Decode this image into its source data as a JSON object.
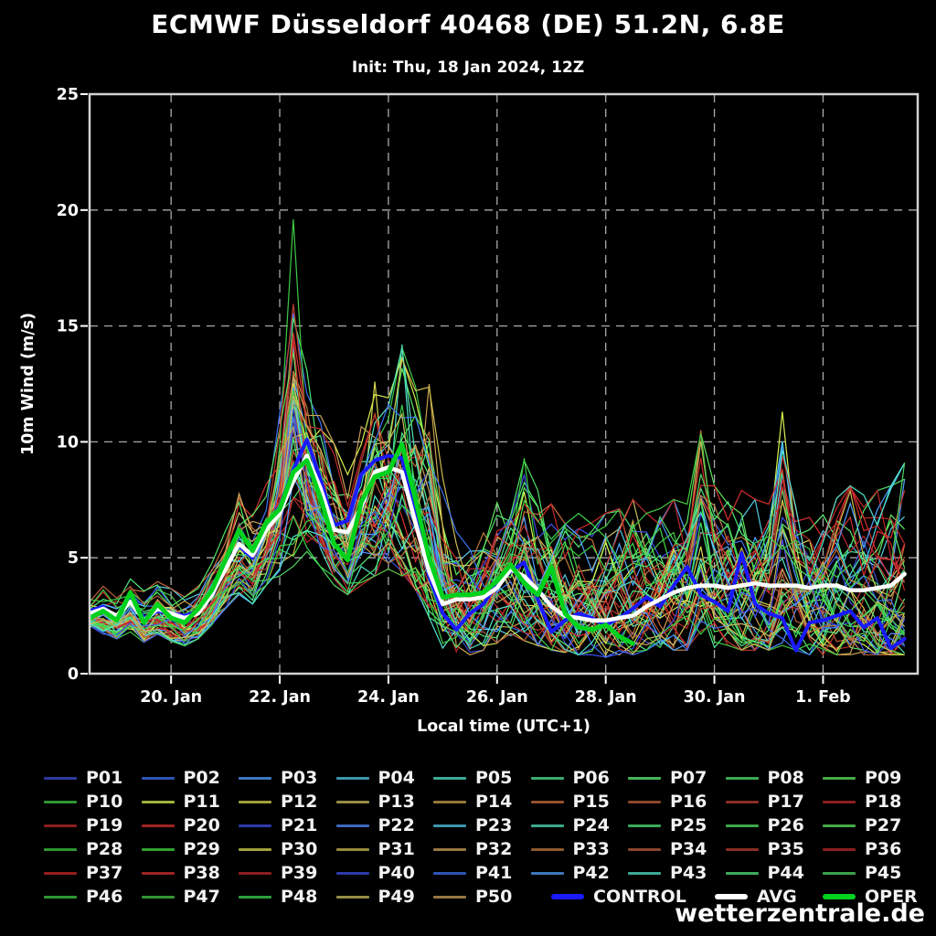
{
  "title": "ECMWF Düsseldorf 40468 (DE) 51.2N, 6.8E",
  "subtitle": "Init: Thu, 18 Jan 2024, 12Z",
  "watermark": "wetterzentrale.de",
  "legend": {
    "members": [
      "P01",
      "P02",
      "P03",
      "P04",
      "P05",
      "P06",
      "P07",
      "P08",
      "P09",
      "P10",
      "P11",
      "P12",
      "P13",
      "P14",
      "P15",
      "P16",
      "P17",
      "P18",
      "P19",
      "P20",
      "P21",
      "P22",
      "P23",
      "P24",
      "P25",
      "P26",
      "P27",
      "P28",
      "P29",
      "P30",
      "P31",
      "P32",
      "P33",
      "P34",
      "P35",
      "P36",
      "P37",
      "P38",
      "P39",
      "P40",
      "P41",
      "P42",
      "P43",
      "P44",
      "P45",
      "P46",
      "P47",
      "P48",
      "P49",
      "P50"
    ],
    "control_label": "CONTROL",
    "avg_label": "AVG",
    "oper_label": "OPER"
  },
  "chart_data": {
    "type": "line",
    "title": "ECMWF Düsseldorf 40468 (DE) 51.2N, 6.8E",
    "xlabel": "Local time (UTC+1)",
    "ylabel": "10m Wind (m/s)",
    "ylim": [
      0,
      25
    ],
    "yticks": [
      0,
      5,
      10,
      15,
      20,
      25
    ],
    "grid": true,
    "x_start": "18 Jan 2024 12:00 UTC+1",
    "time_step_days": 0.25,
    "x_range_days": [
      0,
      15
    ],
    "xticks": {
      "days": [
        1.5,
        3.5,
        5.5,
        7.5,
        9.5,
        11.5,
        13.5
      ],
      "labels": [
        "20. Jan",
        "22. Jan",
        "24. Jan",
        "26. Jan",
        "28. Jan",
        "30. Jan",
        "1. Feb"
      ]
    },
    "series": [
      {
        "name": "CONTROL",
        "color": "#1a1aff",
        "width": 4,
        "values": [
          2.7,
          2.9,
          2.4,
          3.2,
          2.4,
          2.7,
          2.6,
          2.5,
          2.7,
          3.5,
          4.7,
          5.5,
          5.0,
          6.4,
          7.2,
          8.8,
          10.1,
          8.4,
          6.4,
          6.6,
          8.6,
          9.2,
          9.4,
          9.3,
          6.8,
          4.2,
          2.6,
          1.9,
          2.6,
          3.0,
          3.9,
          4.4,
          4.8,
          3.2,
          1.8,
          2.3,
          2.6,
          2.4,
          2.1,
          2.4,
          2.8,
          3.3,
          2.9,
          3.8,
          4.6,
          3.4,
          3.1,
          2.7,
          5.2,
          3.0,
          2.6,
          2.4,
          1.0,
          2.2,
          2.3,
          2.5,
          2.7,
          2.0,
          2.4,
          1.1,
          1.5
        ]
      },
      {
        "name": "AVG",
        "color": "#ffffff",
        "width": 4.5,
        "values": [
          2.6,
          2.8,
          2.5,
          3.1,
          2.3,
          2.8,
          2.6,
          2.4,
          2.6,
          3.4,
          4.5,
          5.6,
          5.1,
          6.2,
          6.9,
          8.3,
          9.4,
          8.0,
          6.2,
          6.1,
          7.2,
          8.7,
          8.9,
          8.7,
          6.5,
          4.4,
          3.0,
          3.2,
          3.2,
          3.3,
          3.7,
          4.5,
          4.2,
          3.6,
          2.9,
          2.5,
          2.4,
          2.3,
          2.3,
          2.4,
          2.5,
          2.9,
          3.2,
          3.5,
          3.7,
          3.8,
          3.8,
          3.7,
          3.8,
          3.9,
          3.8,
          3.8,
          3.8,
          3.7,
          3.8,
          3.8,
          3.6,
          3.6,
          3.7,
          3.8,
          4.3
        ]
      },
      {
        "name": "OPER",
        "color": "#00d21e",
        "width": 5,
        "values": [
          2.4,
          2.7,
          2.3,
          3.5,
          2.2,
          3.0,
          2.4,
          2.2,
          2.8,
          3.6,
          4.9,
          6.2,
          5.3,
          6.5,
          7.1,
          8.7,
          9.2,
          7.6,
          5.6,
          4.9,
          7.4,
          8.5,
          8.7,
          9.9,
          7.5,
          5.0,
          3.3,
          3.4,
          3.4,
          3.5,
          4.0,
          4.7,
          3.9,
          3.4,
          4.6,
          2.6,
          2.0,
          1.9,
          2.1,
          1.6,
          1.3
        ]
      }
    ],
    "ensemble": {
      "count": 50,
      "seed": 42,
      "colors": [
        "#2d3a9e",
        "#2d55b4",
        "#3c78be",
        "#3c96aa",
        "#3caa96",
        "#3caa6e",
        "#46b45a",
        "#3caa50",
        "#46aa46",
        "#2d9632",
        "#a0b43c",
        "#a0a038",
        "#968c46",
        "#967838",
        "#96502d",
        "#8c4628",
        "#8c2d23",
        "#8c1e1e",
        "#8c1e1e",
        "#a02323",
        "#2d3aaa",
        "#3c69be",
        "#3c96aa",
        "#3caa8c",
        "#3caa5a",
        "#3ca84b",
        "#46aa46",
        "#2d9632",
        "#32a032",
        "#a0a03c",
        "#968c3c",
        "#967841",
        "#8c5a2d",
        "#8c462d",
        "#8c2d23",
        "#8c1e1e",
        "#961e1e",
        "#a02323",
        "#8c1e23",
        "#2d3aaa",
        "#2d55b4",
        "#3c78be",
        "#3caa96",
        "#3caa5a",
        "#3ca04b",
        "#2d9632",
        "#329632",
        "#2da03c",
        "#968c46",
        "#967841"
      ],
      "envelope_min": [
        2.0,
        1.7,
        1.5,
        1.8,
        1.3,
        1.7,
        1.4,
        1.2,
        1.5,
        2.1,
        2.8,
        3.4,
        3.0,
        3.8,
        4.2,
        4.6,
        5.2,
        4.6,
        3.8,
        3.4,
        3.8,
        4.2,
        4.5,
        4.2,
        3.6,
        2.4,
        1.0,
        0.7,
        0.8,
        1.0,
        1.3,
        1.5,
        1.4,
        1.2,
        1.0,
        0.9,
        0.8,
        0.8,
        0.7,
        0.8,
        0.8,
        1.0,
        1.0,
        1.0,
        1.0,
        1.2,
        1.0,
        1.0,
        1.0,
        1.0,
        1.0,
        1.2,
        1.0,
        0.8,
        0.8,
        0.8,
        0.8,
        0.8,
        0.8,
        0.8,
        0.8
      ],
      "envelope_max": [
        3.3,
        3.8,
        3.5,
        4.2,
        3.6,
        4.0,
        3.7,
        3.5,
        3.8,
        4.8,
        6.2,
        8.0,
        7.4,
        8.6,
        12.4,
        19.6,
        13.5,
        12.0,
        10.0,
        9.0,
        11.5,
        12.6,
        12.0,
        14.2,
        12.5,
        12.5,
        9.0,
        7.0,
        6.5,
        7.0,
        7.8,
        8.0,
        9.3,
        8.0,
        7.4,
        7.4,
        7.0,
        6.6,
        7.0,
        7.2,
        7.6,
        7.0,
        7.2,
        7.6,
        7.4,
        10.5,
        8.2,
        7.8,
        8.0,
        7.6,
        7.4,
        11.3,
        8.8,
        7.8,
        7.6,
        8.0,
        8.2,
        7.8,
        8.0,
        8.2,
        9.2
      ],
      "notable_spikes": [
        {
          "i": 15,
          "v": 19.6,
          "m": 9
        },
        {
          "i": 21,
          "v": 12.6,
          "m": 11
        },
        {
          "i": 23,
          "v": 14.2,
          "m": 4
        },
        {
          "i": 25,
          "v": 12.5,
          "m": 13
        },
        {
          "i": 32,
          "v": 9.3,
          "m": 27
        },
        {
          "i": 45,
          "v": 10.5,
          "m": 14
        },
        {
          "i": 51,
          "v": 11.3,
          "m": 10
        },
        {
          "i": 60,
          "v": 9.1,
          "m": 44
        },
        {
          "i": 60,
          "v": 8.4,
          "m": 2
        }
      ]
    }
  }
}
